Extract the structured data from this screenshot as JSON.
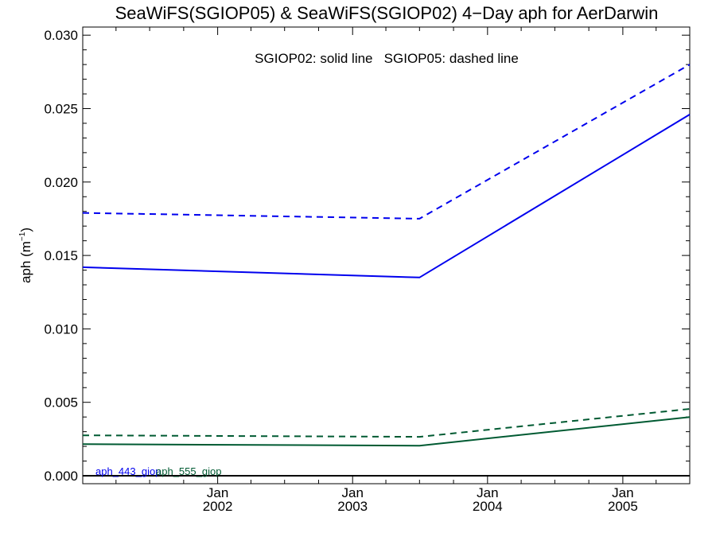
{
  "chart_data": {
    "type": "line",
    "title": "SeaWiFS(SGIOP05) & SeaWiFS(SGIOP02) 4−Day aph for AerDarwin",
    "annotation": "SGIOP02: solid line   SGIOP05: dashed line",
    "ylabel": {
      "main": "aph (m",
      "exponent": "−1",
      "suffix": ")"
    },
    "xlabel": "",
    "xlim": [
      "2001-01-01",
      "2005-07-01"
    ],
    "ylim": [
      0,
      0.0305
    ],
    "grid": false,
    "x_ticks": [
      {
        "date": "2002-01-01",
        "month": "Jan",
        "year": "2002"
      },
      {
        "date": "2003-01-01",
        "month": "Jan",
        "year": "2003"
      },
      {
        "date": "2004-01-01",
        "month": "Jan",
        "year": "2004"
      },
      {
        "date": "2005-01-01",
        "month": "Jan",
        "year": "2005"
      }
    ],
    "y_ticks": [
      "0.000",
      "0.005",
      "0.010",
      "0.015",
      "0.020",
      "0.025",
      "0.030"
    ],
    "legend": [
      {
        "label": "aph_443_giop",
        "color": "#0000ee"
      },
      {
        "label": "aph_555_giop",
        "color": "#005a32"
      }
    ],
    "series": [
      {
        "name": "aph_443_giop",
        "model": "SGIOP02",
        "style": "solid",
        "color": "#0000ee",
        "points": [
          {
            "x": "2001-01-01",
            "y": 0.0142
          },
          {
            "x": "2003-07-01",
            "y": 0.0135
          },
          {
            "x": "2005-07-01",
            "y": 0.0246
          }
        ]
      },
      {
        "name": "aph_443_giop",
        "model": "SGIOP05",
        "style": "dashed",
        "color": "#0000ee",
        "points": [
          {
            "x": "2001-01-01",
            "y": 0.0179
          },
          {
            "x": "2003-07-01",
            "y": 0.0175
          },
          {
            "x": "2005-07-01",
            "y": 0.028
          }
        ]
      },
      {
        "name": "aph_555_giop",
        "model": "SGIOP02",
        "style": "solid",
        "color": "#005a32",
        "points": [
          {
            "x": "2001-01-01",
            "y": 0.00215
          },
          {
            "x": "2003-07-01",
            "y": 0.00205
          },
          {
            "x": "2005-07-01",
            "y": 0.004
          }
        ]
      },
      {
        "name": "aph_555_giop",
        "model": "SGIOP05",
        "style": "dashed",
        "color": "#005a32",
        "points": [
          {
            "x": "2001-01-01",
            "y": 0.00275
          },
          {
            "x": "2003-07-01",
            "y": 0.00265
          },
          {
            "x": "2005-07-01",
            "y": 0.00455
          }
        ]
      }
    ],
    "baseline": {
      "y": 0,
      "color": "#000000"
    }
  }
}
